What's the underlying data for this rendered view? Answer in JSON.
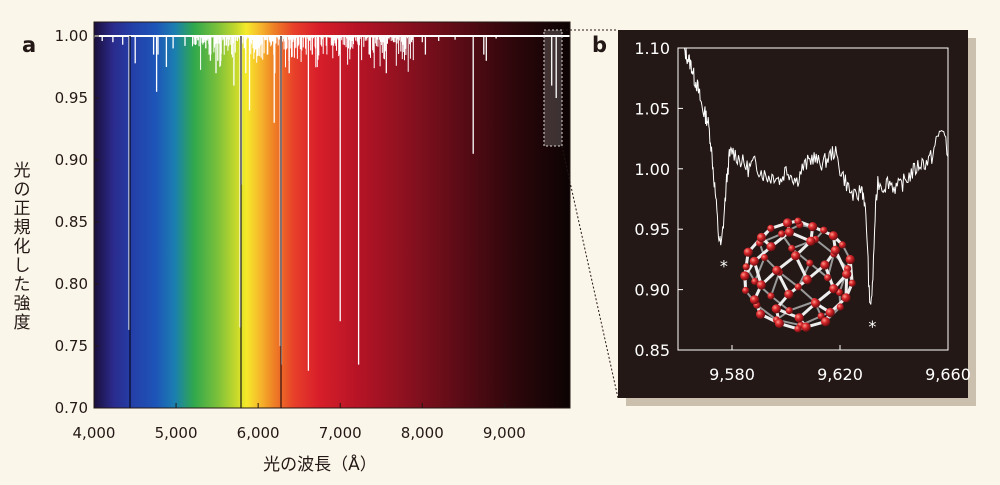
{
  "panel_a": {
    "label": "a",
    "ylabel": "光の正規化した強度",
    "xlabel": "光の波長（Å）"
  },
  "panel_b": {
    "label": "b",
    "markers": [
      "*",
      "*"
    ]
  },
  "colors": {
    "background": "#fbf6ea",
    "panel_b_background": "#231815",
    "panel_b_shadow": "#cbbfae",
    "trace": "#ffffff",
    "c60_atom": "#d8262b",
    "c60_bond": "#e8e8e8"
  },
  "chart_data": [
    {
      "type": "line",
      "xlim": [
        4000,
        9800
      ],
      "ylim": [
        0.7,
        1.0
      ],
      "xticks": [
        4000,
        5000,
        6000,
        7000,
        8000,
        9000
      ],
      "xtick_labels": [
        "4,000",
        "5,000",
        "6,000",
        "7,000",
        "8,000",
        "9,000"
      ],
      "yticks": [
        0.7,
        0.75,
        0.8,
        0.85,
        0.9,
        0.95,
        1.0
      ],
      "ytick_labels": [
        "0.70",
        "0.75",
        "0.80",
        "0.85",
        "0.90",
        "0.95",
        "1.00"
      ],
      "background": "visible-spectrum-gradient",
      "continuum": 1.0,
      "absorption_lines": [
        {
          "x": 4000,
          "y": 0.998
        },
        {
          "x": 4100,
          "y": 0.996
        },
        {
          "x": 4230,
          "y": 0.995
        },
        {
          "x": 4350,
          "y": 0.993
        },
        {
          "x": 4428,
          "y": 0.763
        },
        {
          "x": 4502,
          "y": 0.978
        },
        {
          "x": 4726,
          "y": 0.985
        },
        {
          "x": 4763,
          "y": 0.955
        },
        {
          "x": 4780,
          "y": 0.985
        },
        {
          "x": 4882,
          "y": 0.975
        },
        {
          "x": 4964,
          "y": 0.99
        },
        {
          "x": 5109,
          "y": 0.992
        },
        {
          "x": 5236,
          "y": 0.993
        },
        {
          "x": 5362,
          "y": 0.99
        },
        {
          "x": 5404,
          "y": 0.985
        },
        {
          "x": 5418,
          "y": 0.98
        },
        {
          "x": 5487,
          "y": 0.97
        },
        {
          "x": 5508,
          "y": 0.98
        },
        {
          "x": 5545,
          "y": 0.98
        },
        {
          "x": 5705,
          "y": 0.96
        },
        {
          "x": 5780,
          "y": 0.765
        },
        {
          "x": 5797,
          "y": 0.88
        },
        {
          "x": 5850,
          "y": 0.97
        },
        {
          "x": 5895,
          "y": 0.94
        },
        {
          "x": 6010,
          "y": 0.99
        },
        {
          "x": 6113,
          "y": 0.985
        },
        {
          "x": 6196,
          "y": 0.93
        },
        {
          "x": 6203,
          "y": 0.97
        },
        {
          "x": 6270,
          "y": 0.75
        },
        {
          "x": 6284,
          "y": 0.735
        },
        {
          "x": 6376,
          "y": 0.98
        },
        {
          "x": 6379,
          "y": 0.97
        },
        {
          "x": 6400,
          "y": 0.99
        },
        {
          "x": 6445,
          "y": 0.99
        },
        {
          "x": 6613,
          "y": 0.73
        },
        {
          "x": 6660,
          "y": 0.985
        },
        {
          "x": 6700,
          "y": 0.99
        },
        {
          "x": 6990,
          "y": 0.985
        },
        {
          "x": 7000,
          "y": 0.77
        },
        {
          "x": 7100,
          "y": 0.99
        },
        {
          "x": 7224,
          "y": 0.735
        },
        {
          "x": 7357,
          "y": 0.985
        },
        {
          "x": 7400,
          "y": 0.99
        },
        {
          "x": 7562,
          "y": 0.97
        },
        {
          "x": 7650,
          "y": 0.995
        },
        {
          "x": 7800,
          "y": 0.99
        },
        {
          "x": 7870,
          "y": 0.995
        },
        {
          "x": 8000,
          "y": 0.995
        },
        {
          "x": 8038,
          "y": 0.985
        },
        {
          "x": 8200,
          "y": 0.996
        },
        {
          "x": 8400,
          "y": 0.997
        },
        {
          "x": 8621,
          "y": 0.905
        },
        {
          "x": 8750,
          "y": 0.985
        },
        {
          "x": 8780,
          "y": 0.98
        },
        {
          "x": 8900,
          "y": 0.998
        },
        {
          "x": 9577,
          "y": 0.96
        },
        {
          "x": 9632,
          "y": 0.95
        }
      ],
      "highlight_box": {
        "x": [
          9530,
          9760
        ],
        "y": [
          0.91,
          1.005
        ]
      }
    },
    {
      "type": "line",
      "xlim": [
        9560,
        9660
      ],
      "ylim": [
        0.85,
        1.1
      ],
      "xticks": [
        9580,
        9620,
        9660
      ],
      "xtick_labels": [
        "9,580",
        "9,620",
        "9,660"
      ],
      "yticks": [
        0.85,
        0.9,
        0.95,
        1.0,
        1.05,
        1.1
      ],
      "ytick_labels": [
        "0.85",
        "0.90",
        "0.95",
        "1.00",
        "1.05",
        "1.10"
      ],
      "series": [
        {
          "x": [
            9562,
            9563,
            9564,
            9565,
            9566,
            9567,
            9568,
            9569,
            9570,
            9571,
            9572,
            9573,
            9574,
            9575,
            9576,
            9577,
            9578,
            9579,
            9580,
            9582,
            9584,
            9586,
            9588,
            9590,
            9592,
            9594,
            9596,
            9598,
            9600,
            9602,
            9604,
            9606,
            9608,
            9610,
            9612,
            9614,
            9616,
            9618,
            9620,
            9622,
            9624,
            9626,
            9628,
            9629,
            9630,
            9631,
            9632,
            9633,
            9634,
            9636,
            9638,
            9640,
            9642,
            9644,
            9646,
            9648,
            9650,
            9652,
            9654,
            9656,
            9658,
            9660
          ],
          "y": [
            1.1,
            1.095,
            1.09,
            1.085,
            1.075,
            1.07,
            1.06,
            1.05,
            1.045,
            1.04,
            1.025,
            1.0,
            0.975,
            0.945,
            0.935,
            0.96,
            0.99,
            1.01,
            1.015,
            1.01,
            1.005,
            1.0,
            1.005,
            1.0,
            0.995,
            0.993,
            0.995,
            0.99,
            1.0,
            0.995,
            0.99,
            1.0,
            1.005,
            1.01,
            1.005,
            1.005,
            1.01,
            1.015,
            1.0,
            0.99,
            0.98,
            0.975,
            0.985,
            0.975,
            0.945,
            0.885,
            0.9,
            0.96,
            0.99,
            0.985,
            0.99,
            0.985,
            0.985,
            0.99,
            0.995,
            1.0,
            1.005,
            1.005,
            1.01,
            1.025,
            1.035,
            1.01
          ]
        }
      ],
      "annotations": [
        {
          "text": "*",
          "x": 9577,
          "y": 0.925
        },
        {
          "text": "*",
          "x": 9632,
          "y": 0.875
        }
      ]
    }
  ]
}
